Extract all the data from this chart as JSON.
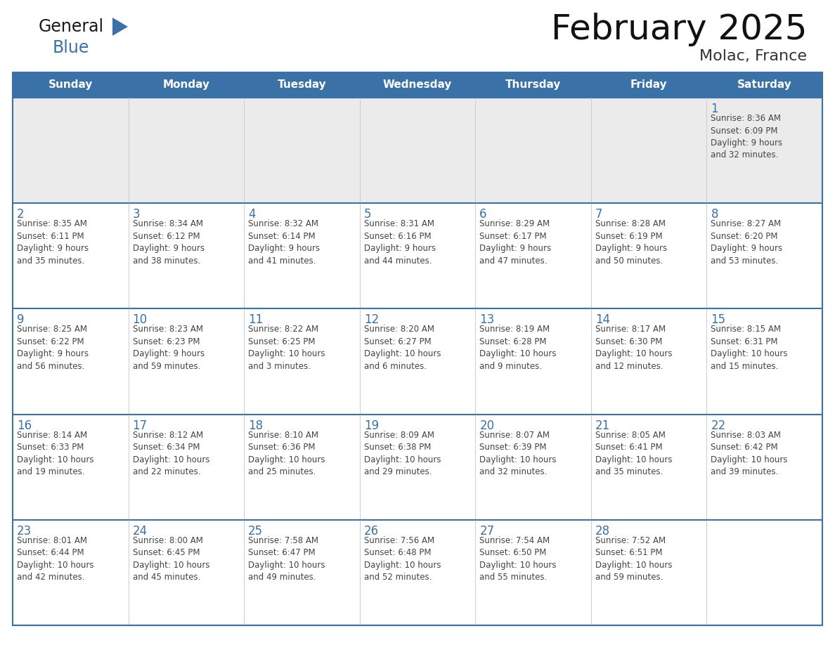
{
  "title": "February 2025",
  "subtitle": "Molac, France",
  "days_of_week": [
    "Sunday",
    "Monday",
    "Tuesday",
    "Wednesday",
    "Thursday",
    "Friday",
    "Saturday"
  ],
  "header_bg": "#3A72A8",
  "header_text": "#FFFFFF",
  "row1_bg": "#EBEBEB",
  "row_bg": "#FFFFFF",
  "day_num_color": "#3A72A8",
  "text_color": "#444444",
  "logo_general_color": "#1A1A1A",
  "logo_blue_color": "#3A72A8",
  "calendar": [
    [
      {
        "day": null,
        "text": ""
      },
      {
        "day": null,
        "text": ""
      },
      {
        "day": null,
        "text": ""
      },
      {
        "day": null,
        "text": ""
      },
      {
        "day": null,
        "text": ""
      },
      {
        "day": null,
        "text": ""
      },
      {
        "day": 1,
        "text": "Sunrise: 8:36 AM\nSunset: 6:09 PM\nDaylight: 9 hours\nand 32 minutes."
      }
    ],
    [
      {
        "day": 2,
        "text": "Sunrise: 8:35 AM\nSunset: 6:11 PM\nDaylight: 9 hours\nand 35 minutes."
      },
      {
        "day": 3,
        "text": "Sunrise: 8:34 AM\nSunset: 6:12 PM\nDaylight: 9 hours\nand 38 minutes."
      },
      {
        "day": 4,
        "text": "Sunrise: 8:32 AM\nSunset: 6:14 PM\nDaylight: 9 hours\nand 41 minutes."
      },
      {
        "day": 5,
        "text": "Sunrise: 8:31 AM\nSunset: 6:16 PM\nDaylight: 9 hours\nand 44 minutes."
      },
      {
        "day": 6,
        "text": "Sunrise: 8:29 AM\nSunset: 6:17 PM\nDaylight: 9 hours\nand 47 minutes."
      },
      {
        "day": 7,
        "text": "Sunrise: 8:28 AM\nSunset: 6:19 PM\nDaylight: 9 hours\nand 50 minutes."
      },
      {
        "day": 8,
        "text": "Sunrise: 8:27 AM\nSunset: 6:20 PM\nDaylight: 9 hours\nand 53 minutes."
      }
    ],
    [
      {
        "day": 9,
        "text": "Sunrise: 8:25 AM\nSunset: 6:22 PM\nDaylight: 9 hours\nand 56 minutes."
      },
      {
        "day": 10,
        "text": "Sunrise: 8:23 AM\nSunset: 6:23 PM\nDaylight: 9 hours\nand 59 minutes."
      },
      {
        "day": 11,
        "text": "Sunrise: 8:22 AM\nSunset: 6:25 PM\nDaylight: 10 hours\nand 3 minutes."
      },
      {
        "day": 12,
        "text": "Sunrise: 8:20 AM\nSunset: 6:27 PM\nDaylight: 10 hours\nand 6 minutes."
      },
      {
        "day": 13,
        "text": "Sunrise: 8:19 AM\nSunset: 6:28 PM\nDaylight: 10 hours\nand 9 minutes."
      },
      {
        "day": 14,
        "text": "Sunrise: 8:17 AM\nSunset: 6:30 PM\nDaylight: 10 hours\nand 12 minutes."
      },
      {
        "day": 15,
        "text": "Sunrise: 8:15 AM\nSunset: 6:31 PM\nDaylight: 10 hours\nand 15 minutes."
      }
    ],
    [
      {
        "day": 16,
        "text": "Sunrise: 8:14 AM\nSunset: 6:33 PM\nDaylight: 10 hours\nand 19 minutes."
      },
      {
        "day": 17,
        "text": "Sunrise: 8:12 AM\nSunset: 6:34 PM\nDaylight: 10 hours\nand 22 minutes."
      },
      {
        "day": 18,
        "text": "Sunrise: 8:10 AM\nSunset: 6:36 PM\nDaylight: 10 hours\nand 25 minutes."
      },
      {
        "day": 19,
        "text": "Sunrise: 8:09 AM\nSunset: 6:38 PM\nDaylight: 10 hours\nand 29 minutes."
      },
      {
        "day": 20,
        "text": "Sunrise: 8:07 AM\nSunset: 6:39 PM\nDaylight: 10 hours\nand 32 minutes."
      },
      {
        "day": 21,
        "text": "Sunrise: 8:05 AM\nSunset: 6:41 PM\nDaylight: 10 hours\nand 35 minutes."
      },
      {
        "day": 22,
        "text": "Sunrise: 8:03 AM\nSunset: 6:42 PM\nDaylight: 10 hours\nand 39 minutes."
      }
    ],
    [
      {
        "day": 23,
        "text": "Sunrise: 8:01 AM\nSunset: 6:44 PM\nDaylight: 10 hours\nand 42 minutes."
      },
      {
        "day": 24,
        "text": "Sunrise: 8:00 AM\nSunset: 6:45 PM\nDaylight: 10 hours\nand 45 minutes."
      },
      {
        "day": 25,
        "text": "Sunrise: 7:58 AM\nSunset: 6:47 PM\nDaylight: 10 hours\nand 49 minutes."
      },
      {
        "day": 26,
        "text": "Sunrise: 7:56 AM\nSunset: 6:48 PM\nDaylight: 10 hours\nand 52 minutes."
      },
      {
        "day": 27,
        "text": "Sunrise: 7:54 AM\nSunset: 6:50 PM\nDaylight: 10 hours\nand 55 minutes."
      },
      {
        "day": 28,
        "text": "Sunrise: 7:52 AM\nSunset: 6:51 PM\nDaylight: 10 hours\nand 59 minutes."
      },
      {
        "day": null,
        "text": ""
      }
    ]
  ]
}
